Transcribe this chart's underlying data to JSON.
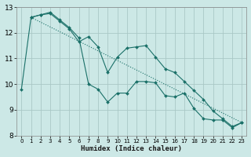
{
  "xlabel": "Humidex (Indice chaleur)",
  "background_color": "#cce8e6",
  "grid_color": "#aac8c6",
  "line_color": "#1a7068",
  "xlim": [
    -0.5,
    23.5
  ],
  "ylim": [
    8,
    13
  ],
  "yticks": [
    8,
    9,
    10,
    11,
    12,
    13
  ],
  "xticks": [
    0,
    1,
    2,
    3,
    4,
    5,
    6,
    7,
    8,
    9,
    10,
    11,
    12,
    13,
    14,
    15,
    16,
    17,
    18,
    19,
    20,
    21,
    22,
    23
  ],
  "series1_x": [
    0,
    1,
    2,
    3,
    4,
    5,
    6,
    7,
    8,
    9,
    10,
    11,
    12,
    13,
    14,
    15,
    16,
    17,
    18,
    19,
    20,
    21,
    22,
    23
  ],
  "series1_y": [
    9.8,
    12.6,
    12.7,
    12.8,
    12.5,
    12.2,
    11.8,
    10.0,
    9.8,
    9.3,
    9.65,
    9.65,
    10.1,
    10.1,
    10.05,
    9.55,
    9.5,
    9.65,
    9.05,
    8.65,
    8.6,
    8.6,
    8.3,
    8.5
  ],
  "series2_x": [
    1,
    2,
    3,
    4,
    5,
    6,
    7,
    8,
    9,
    10,
    11,
    12,
    13,
    14,
    15,
    16,
    17,
    18,
    19,
    20,
    21,
    22,
    23
  ],
  "series2_y": [
    12.6,
    12.7,
    12.75,
    12.45,
    12.15,
    11.65,
    11.85,
    11.45,
    10.45,
    11.05,
    11.4,
    11.45,
    11.5,
    11.05,
    10.6,
    10.45,
    10.1,
    9.75,
    9.4,
    8.95,
    8.65,
    8.35,
    8.5
  ],
  "series3_x": [
    1,
    23
  ],
  "series3_y": [
    12.6,
    8.5
  ]
}
